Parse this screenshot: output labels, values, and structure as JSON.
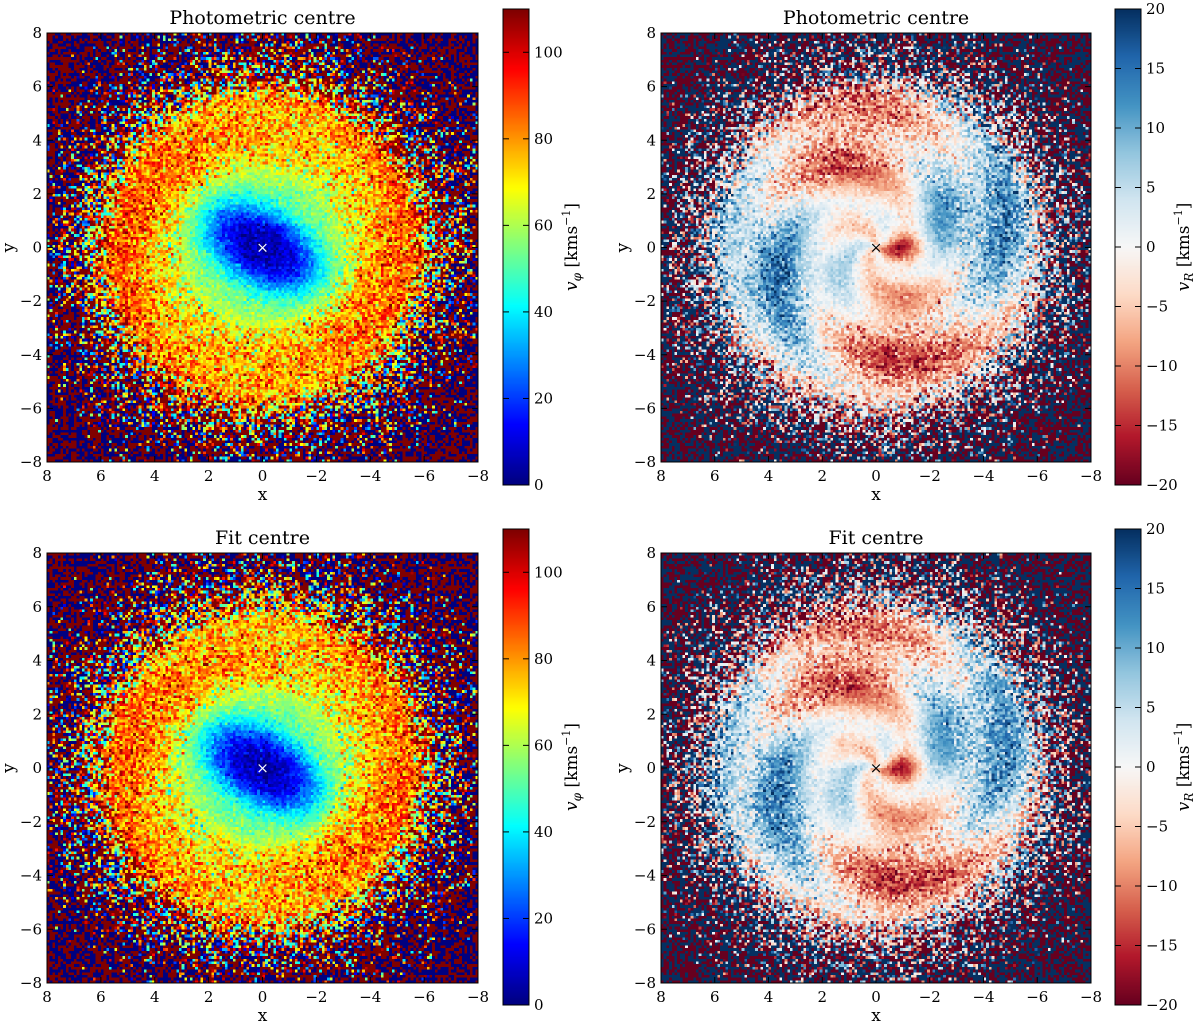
{
  "chart_data": [
    {
      "type": "heatmap",
      "title": "Photometric centre",
      "xlabel": "x",
      "ylabel": "y",
      "xlim": [
        8,
        -8
      ],
      "ylim": [
        -8,
        8
      ],
      "xticks": [
        "8",
        "6",
        "4",
        "2",
        "0",
        "−2",
        "−4",
        "−6",
        "−8"
      ],
      "yticks": [
        "−8",
        "−6",
        "−4",
        "−2",
        "0",
        "2",
        "4",
        "6",
        "8"
      ],
      "colormap": "jet",
      "colorbar": {
        "label": "v_φ [kms⁻¹]",
        "label_main": "v",
        "label_sub": "φ",
        "label_unit": " [kms",
        "label_exp": "−1",
        "label_close": "]",
        "range": [
          0,
          110
        ],
        "ticks": [
          "0",
          "20",
          "40",
          "60",
          "80",
          "100"
        ]
      },
      "marker": {
        "symbol": "×",
        "x": 0,
        "y": 0,
        "color": "#ffffff"
      },
      "field": {
        "kind": "vphi",
        "bar_angle_deg": 30,
        "core_value": 5,
        "outer_value": 82
      },
      "noise_seed": 11
    },
    {
      "type": "heatmap",
      "title": "Photometric centre",
      "xlabel": "x",
      "ylabel": "y",
      "xlim": [
        8,
        -8
      ],
      "ylim": [
        -8,
        8
      ],
      "xticks": [
        "8",
        "6",
        "4",
        "2",
        "0",
        "−2",
        "−4",
        "−6",
        "−8"
      ],
      "yticks": [
        "−8",
        "−6",
        "−4",
        "−2",
        "0",
        "2",
        "4",
        "6",
        "8"
      ],
      "colormap": "RdBu",
      "colorbar": {
        "label": "v_R [kms⁻¹]",
        "label_main": "v",
        "label_sub": "R",
        "label_unit": " [kms",
        "label_exp": "−1",
        "label_close": "]",
        "range": [
          -20,
          20
        ],
        "ticks": [
          "−20",
          "−15",
          "−10",
          "−5",
          "0",
          "5",
          "10",
          "15",
          "20"
        ]
      },
      "marker": {
        "symbol": "×",
        "x": 0,
        "y": 0,
        "color": "#000000"
      },
      "field": {
        "kind": "vr",
        "quadrupole_angle_deg": 30
      },
      "noise_seed": 23
    },
    {
      "type": "heatmap",
      "title": "Fit centre",
      "xlabel": "x",
      "ylabel": "y",
      "xlim": [
        8,
        -8
      ],
      "ylim": [
        -8,
        8
      ],
      "xticks": [
        "8",
        "6",
        "4",
        "2",
        "0",
        "−2",
        "−4",
        "−6",
        "−8"
      ],
      "yticks": [
        "−8",
        "−6",
        "−4",
        "−2",
        "0",
        "2",
        "4",
        "6",
        "8"
      ],
      "colormap": "jet",
      "colorbar": {
        "label": "v_φ [kms⁻¹]",
        "label_main": "v",
        "label_sub": "φ",
        "label_unit": " [kms",
        "label_exp": "−1",
        "label_close": "]",
        "range": [
          0,
          110
        ],
        "ticks": [
          "0",
          "20",
          "40",
          "60",
          "80",
          "100"
        ]
      },
      "marker": {
        "symbol": "×",
        "x": 0,
        "y": 0,
        "color": "#ffffff"
      },
      "field": {
        "kind": "vphi",
        "bar_angle_deg": 30,
        "core_value": 5,
        "outer_value": 82
      },
      "noise_seed": 37
    },
    {
      "type": "heatmap",
      "title": "Fit centre",
      "xlabel": "x",
      "ylabel": "y",
      "xlim": [
        8,
        -8
      ],
      "ylim": [
        -8,
        8
      ],
      "xticks": [
        "8",
        "6",
        "4",
        "2",
        "0",
        "−2",
        "−4",
        "−6",
        "−8"
      ],
      "yticks": [
        "−8",
        "−6",
        "−4",
        "−2",
        "0",
        "2",
        "4",
        "6",
        "8"
      ],
      "colormap": "RdBu",
      "colorbar": {
        "label": "v_R [kms⁻¹]",
        "label_main": "v",
        "label_sub": "R",
        "label_unit": " [kms",
        "label_exp": "−1",
        "label_close": "]",
        "range": [
          -20,
          20
        ],
        "ticks": [
          "−20",
          "−15",
          "−10",
          "−5",
          "0",
          "5",
          "10",
          "15",
          "20"
        ]
      },
      "marker": {
        "symbol": "×",
        "x": 0,
        "y": 0,
        "color": "#000000"
      },
      "field": {
        "kind": "vr",
        "quadrupole_angle_deg": 30
      },
      "noise_seed": 51
    }
  ]
}
